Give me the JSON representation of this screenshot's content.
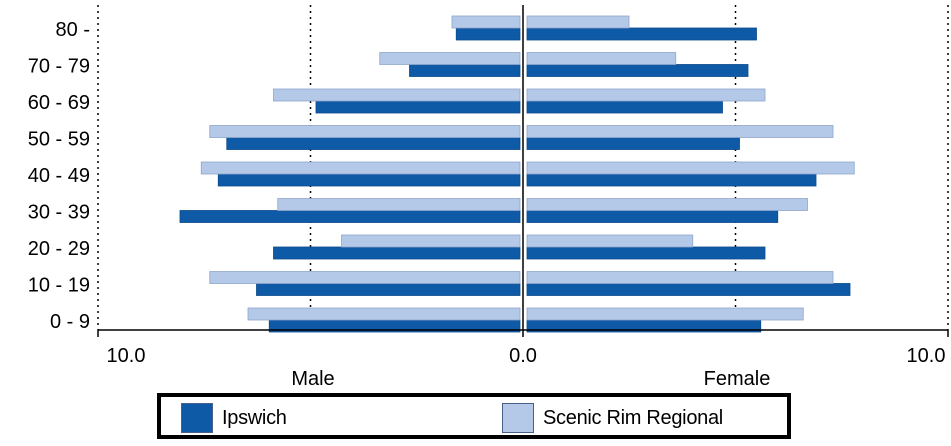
{
  "chart_data": {
    "type": "bar",
    "orientation": "horizontal",
    "layout": "population-pyramid",
    "categories": [
      "80 -",
      "70 - 79",
      "60 - 69",
      "50 - 59",
      "40 - 49",
      "30 - 39",
      "20 - 29",
      "10 - 19",
      "0 - 9"
    ],
    "series": [
      {
        "name": "Ipswich",
        "color": "#0f5aa6",
        "male": [
          1.5,
          2.6,
          4.8,
          6.9,
          7.1,
          8.0,
          5.8,
          6.2,
          5.9
        ],
        "female": [
          5.4,
          5.2,
          4.6,
          5.0,
          6.8,
          5.9,
          5.6,
          7.6,
          5.5
        ]
      },
      {
        "name": "Scenic Rim Regional",
        "color": "#b4c8e8",
        "male": [
          1.6,
          3.3,
          5.8,
          7.3,
          7.5,
          5.7,
          4.2,
          7.3,
          6.4
        ],
        "female": [
          2.4,
          3.5,
          5.6,
          7.2,
          7.7,
          6.6,
          3.9,
          7.2,
          6.5
        ]
      }
    ],
    "xlim": [
      -10,
      10
    ],
    "x_ticks": [
      "10.0",
      "0.0",
      "10.0"
    ],
    "gridlines_at": [
      -5,
      5
    ],
    "xlabel_left": "Male",
    "xlabel_right": "Female",
    "legend_position": "bottom"
  }
}
